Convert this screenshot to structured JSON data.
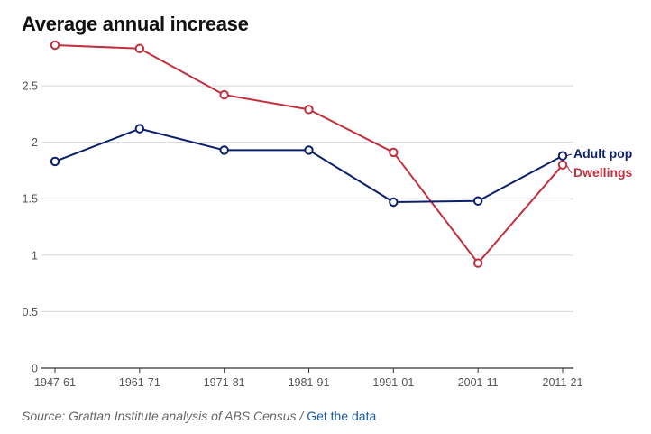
{
  "chart_data": {
    "type": "line",
    "title": "Average annual increase",
    "categories": [
      "1947-61",
      "1961-71",
      "1971-81",
      "1981-91",
      "1991-01",
      "2001-11",
      "2011-21"
    ],
    "series": [
      {
        "name": "Adult pop",
        "color": "#0b1f6b",
        "values": [
          1.83,
          2.12,
          1.93,
          1.93,
          1.47,
          1.48,
          1.88
        ]
      },
      {
        "name": "Dwellings",
        "color": "#c0303e",
        "values": [
          2.86,
          2.83,
          2.42,
          2.29,
          1.91,
          0.93,
          1.8
        ]
      }
    ],
    "y_ticks": [
      "0",
      "0.5",
      "1",
      "1.5",
      "2",
      "2.5"
    ],
    "ylim": [
      0,
      2.9
    ],
    "grid": true,
    "legend": "inline labels at line ends (right)",
    "xlabel": "",
    "ylabel": ""
  },
  "footer": {
    "source": "Source: Grattan Institute analysis of ABS Census /",
    "link_label": "Get the data"
  },
  "colors": {
    "gridline": "#d6d6df",
    "axis": "#333333",
    "marker_fill": "#ffffff"
  }
}
